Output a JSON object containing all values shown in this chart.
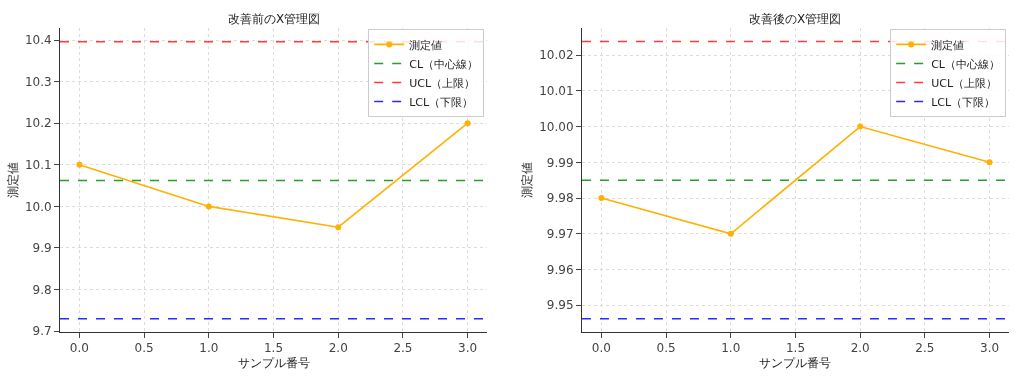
{
  "chart_data": [
    {
      "type": "line",
      "title": "改善前のX管理図",
      "xlabel": "サンプル番号",
      "ylabel": "測定値",
      "x": [
        0,
        1,
        2,
        3
      ],
      "series": [
        {
          "name": "測定値",
          "color": "#ffb000",
          "values": [
            10.1,
            10.0,
            9.95,
            10.2
          ]
        }
      ],
      "ref_lines": [
        {
          "axis": "y",
          "value": 10.0625,
          "label": "CL（中心線）",
          "color": "#22a02a",
          "line_style": "dashed"
        },
        {
          "axis": "y",
          "value": 10.396,
          "label": "UCL（上限）",
          "color": "#ff3b3b",
          "line_style": "dashed"
        },
        {
          "axis": "y",
          "value": 9.73,
          "label": "LCL（下限）",
          "color": "#2a2aff",
          "line_style": "dashed"
        }
      ],
      "xlim": [
        -0.15,
        3.15
      ],
      "xticks": [
        {
          "value": 0,
          "label": "0.0"
        },
        {
          "value": 0.5,
          "label": "0.5"
        },
        {
          "value": 1,
          "label": "1.0"
        },
        {
          "value": 1.5,
          "label": "1.5"
        },
        {
          "value": 2,
          "label": "2.0"
        },
        {
          "value": 2.5,
          "label": "2.5"
        },
        {
          "value": 3,
          "label": "3.0"
        }
      ],
      "ylim": [
        9.698,
        10.429
      ],
      "yticks": [
        9.7,
        9.8,
        9.9,
        {
          "value": 10.0,
          "label": "10.0"
        },
        10.1,
        10.2,
        10.3,
        10.4
      ],
      "grid": true,
      "legend": "top right",
      "marker": "circle",
      "line_style": "solid"
    },
    {
      "type": "line",
      "title": "改善後のX管理図",
      "xlabel": "サンプル番号",
      "ylabel": "測定値",
      "x": [
        0,
        1,
        2,
        3
      ],
      "series": [
        {
          "name": "測定値",
          "color": "#ffb000",
          "values": [
            9.98,
            9.97,
            10.0,
            9.99
          ]
        }
      ],
      "ref_lines": [
        {
          "axis": "y",
          "value": 9.985,
          "label": "CL（中心線）",
          "color": "#22a02a",
          "line_style": "dashed"
        },
        {
          "axis": "y",
          "value": 10.0238,
          "label": "UCL（上限）",
          "color": "#ff3b3b",
          "line_style": "dashed"
        },
        {
          "axis": "y",
          "value": 9.9462,
          "label": "LCL（下限）",
          "color": "#2a2aff",
          "line_style": "dashed"
        }
      ],
      "xlim": [
        -0.15,
        3.15
      ],
      "xticks": [
        {
          "value": 0,
          "label": "0.0"
        },
        {
          "value": 0.5,
          "label": "0.5"
        },
        {
          "value": 1,
          "label": "1.0"
        },
        {
          "value": 1.5,
          "label": "1.5"
        },
        {
          "value": 2,
          "label": "2.0"
        },
        {
          "value": 2.5,
          "label": "2.5"
        },
        {
          "value": 3,
          "label": "3.0"
        }
      ],
      "ylim": [
        9.9425,
        10.0276
      ],
      "yticks": [
        9.95,
        9.96,
        9.97,
        9.98,
        9.99,
        {
          "value": 10.0,
          "label": "10.00"
        },
        10.01,
        10.02
      ],
      "grid": true,
      "legend": "top right",
      "marker": "circle",
      "line_style": "solid"
    }
  ]
}
